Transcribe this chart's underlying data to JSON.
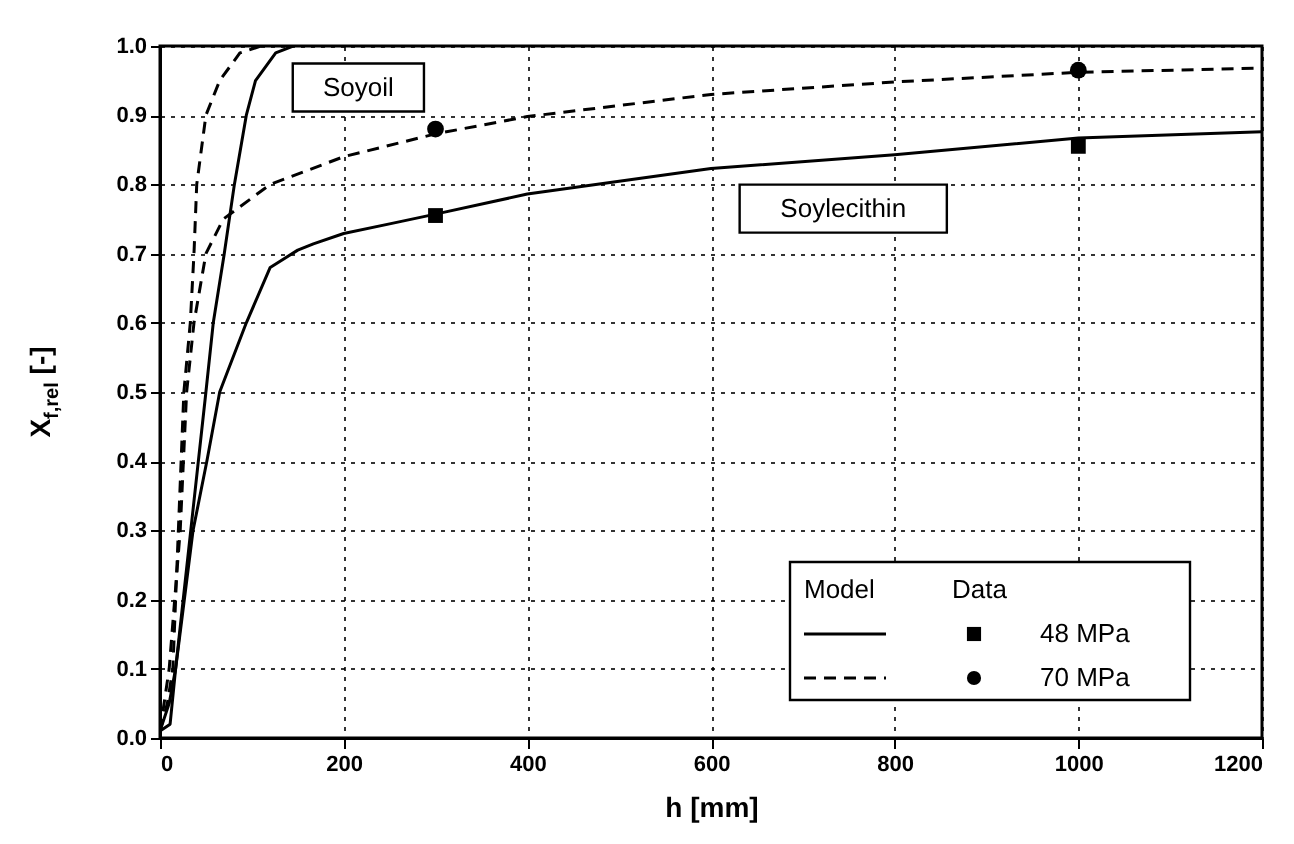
{
  "chart_data": {
    "type": "line",
    "xlabel": "h  [mm]",
    "ylabel": "X$_{f,rel}$  [-]",
    "xlim": [
      0,
      1200
    ],
    "xticks": [
      0,
      200,
      400,
      600,
      800,
      1000,
      1200
    ],
    "ylim": [
      0,
      1.0
    ],
    "yticks": [
      {
        "value": 0,
        "label": "0.0"
      },
      0.1,
      0.2,
      0.3,
      0.4,
      0.5,
      0.6,
      0.7,
      0.8,
      0.9,
      {
        "value": 1.0,
        "label": "1.0"
      }
    ],
    "grid": true,
    "legend": "bottom right",
    "legend_title": "Model",
    "annotations": [
      "Soyoil",
      "Soylecithin",
      "Data"
    ],
    "series": [
      {
        "color": "#000000",
        "line_style": "solid",
        "x": [
          0,
          10,
          17,
          50,
          58,
          70,
          81,
          94,
          104,
          126,
          145
        ],
        "values": [
          0.01,
          0.05,
          0.1,
          0.5,
          0.6,
          0.7,
          0.8,
          0.9,
          0.95,
          0.99,
          1.0
        ]
      },
      {
        "color": "#000000",
        "line_style": "dashed",
        "x": [
          0,
          8,
          14,
          26,
          33,
          37,
          40,
          50,
          65,
          87,
          110
        ],
        "values": [
          0.01,
          0.05,
          0.1,
          0.5,
          0.6,
          0.7,
          0.8,
          0.9,
          0.95,
          0.99,
          1.0
        ]
      },
      {
        "color": "#000000",
        "line_style": "solid",
        "x": [
          0,
          11,
          17,
          36,
          51,
          65,
          94,
          120,
          150,
          167,
          200,
          250,
          300,
          400,
          600,
          800,
          1000,
          1200
        ],
        "values": [
          0.01,
          0.02,
          0.1,
          0.3,
          0.4,
          0.5,
          0.6,
          0.68,
          0.705,
          0.714,
          0.729,
          0.743,
          0.757,
          0.786,
          0.823,
          0.843,
          0.867,
          0.876
        ]
      },
      {
        "color": "#000000",
        "line_style": "dashed",
        "x": [
          0,
          10,
          22,
          29,
          37,
          50,
          69,
          120,
          200,
          300,
          400,
          600,
          800,
          1000,
          1200
        ],
        "values": [
          0.01,
          0.1,
          0.3,
          0.5,
          0.6,
          0.7,
          0.75,
          0.8,
          0.84,
          0.873,
          0.898,
          0.93,
          0.948,
          0.962,
          0.968
        ]
      },
      {
        "type": "scatter",
        "name": "48 MPa",
        "color": "#000000",
        "marker": "square",
        "x": [
          300,
          1000
        ],
        "values": [
          0.755,
          0.855
        ]
      },
      {
        "type": "scatter",
        "name": "70 MPa",
        "color": "#000000",
        "marker": "circle",
        "x": [
          300,
          1000
        ],
        "values": [
          0.88,
          0.965
        ]
      }
    ]
  }
}
